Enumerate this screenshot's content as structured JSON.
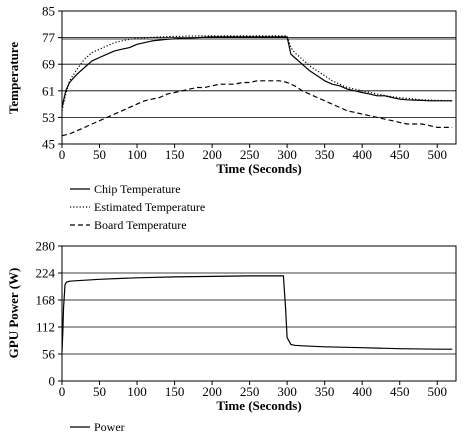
{
  "chart_data": [
    {
      "type": "line",
      "xlabel": "Time (Seconds)",
      "ylabel": "Temperature",
      "xlim": [
        0,
        525
      ],
      "ylim": [
        45,
        85
      ],
      "xticks": [
        "0",
        "50",
        "100",
        "150",
        "200",
        "250",
        "300",
        "350",
        "400",
        "450",
        "500"
      ],
      "yticks": [
        "45",
        "53",
        "61",
        "69",
        "77",
        "85"
      ],
      "grid": "horizontal",
      "legend_position": "below",
      "series": [
        {
          "name": "Chip Temperature",
          "dash": "solid",
          "x": [
            0,
            5,
            10,
            20,
            30,
            40,
            50,
            60,
            70,
            80,
            90,
            100,
            120,
            140,
            160,
            180,
            200,
            250,
            300,
            305,
            310,
            320,
            330,
            340,
            350,
            360,
            370,
            380,
            390,
            400,
            410,
            420,
            430,
            440,
            450,
            460,
            470,
            480,
            490,
            500,
            510,
            520
          ],
          "y": [
            56,
            61,
            63.5,
            66,
            68,
            70,
            71,
            72,
            73,
            73.5,
            74,
            75,
            76,
            76.5,
            76.8,
            77,
            77.2,
            77.2,
            77.2,
            72,
            71,
            69,
            67,
            65.5,
            64,
            63,
            62.5,
            61.5,
            61,
            60.5,
            60,
            59.5,
            59.5,
            59,
            58.5,
            58.3,
            58.2,
            58.1,
            58,
            58,
            58,
            58
          ]
        },
        {
          "name": "Estimated Temperature",
          "dash": "dotted",
          "x": [
            0,
            5,
            10,
            20,
            30,
            40,
            50,
            60,
            70,
            80,
            90,
            100,
            120,
            140,
            160,
            180,
            200,
            250,
            300,
            305,
            310,
            320,
            330,
            340,
            350,
            360,
            370,
            380,
            390,
            400,
            420,
            440,
            460,
            480,
            500,
            520
          ],
          "y": [
            55,
            60,
            64,
            67.5,
            70.5,
            72.5,
            73.5,
            74.5,
            75.5,
            76,
            76.5,
            76.8,
            77.1,
            77.3,
            77.4,
            77.5,
            77.5,
            77.5,
            77.5,
            74,
            72.5,
            70.5,
            68.5,
            67,
            65.5,
            64,
            63,
            62,
            61.5,
            61,
            60,
            59.2,
            58.7,
            58.3,
            58.1,
            58
          ]
        },
        {
          "name": "Board Temperature",
          "dash": "dashed",
          "x": [
            0,
            10,
            20,
            30,
            40,
            50,
            60,
            70,
            80,
            90,
            100,
            110,
            120,
            130,
            140,
            150,
            160,
            170,
            180,
            190,
            200,
            210,
            220,
            230,
            240,
            250,
            260,
            270,
            280,
            290,
            300,
            310,
            320,
            330,
            340,
            350,
            360,
            370,
            380,
            390,
            400,
            410,
            420,
            430,
            440,
            450,
            460,
            470,
            480,
            490,
            500,
            510,
            520
          ],
          "y": [
            47.5,
            48,
            49,
            50,
            51,
            52,
            53,
            54,
            55,
            56,
            57,
            58,
            58.5,
            59,
            60,
            60.5,
            61,
            61.5,
            62,
            62,
            62.5,
            63,
            63,
            63,
            63.5,
            63.5,
            64,
            64,
            64,
            64,
            63.5,
            62.5,
            61,
            60,
            59,
            58,
            57,
            56,
            55,
            54.5,
            54,
            53.5,
            53,
            52.5,
            52,
            51.5,
            51,
            51,
            51,
            50.5,
            50,
            50,
            50
          ]
        }
      ]
    },
    {
      "type": "line",
      "xlabel": "Time (Seconds)",
      "ylabel": "GPU Power (W)",
      "xlim": [
        0,
        525
      ],
      "ylim": [
        0,
        280
      ],
      "xticks": [
        "0",
        "50",
        "100",
        "150",
        "200",
        "250",
        "300",
        "350",
        "400",
        "450",
        "500"
      ],
      "yticks": [
        "0",
        "56",
        "112",
        "168",
        "224",
        "280"
      ],
      "grid": "horizontal",
      "legend_position": "below",
      "series": [
        {
          "name": "Power",
          "dash": "solid",
          "x": [
            0,
            1,
            2,
            4,
            6,
            10,
            20,
            50,
            100,
            150,
            200,
            250,
            280,
            295,
            298,
            300,
            305,
            310,
            320,
            350,
            400,
            450,
            500,
            520
          ],
          "y": 4,
          "y_values": [
            60,
            100,
            150,
            200,
            205,
            207,
            208,
            211,
            214,
            216,
            217,
            218,
            218,
            218,
            150,
            90,
            76,
            74,
            73,
            71,
            69,
            67,
            66,
            66
          ]
        }
      ]
    }
  ]
}
